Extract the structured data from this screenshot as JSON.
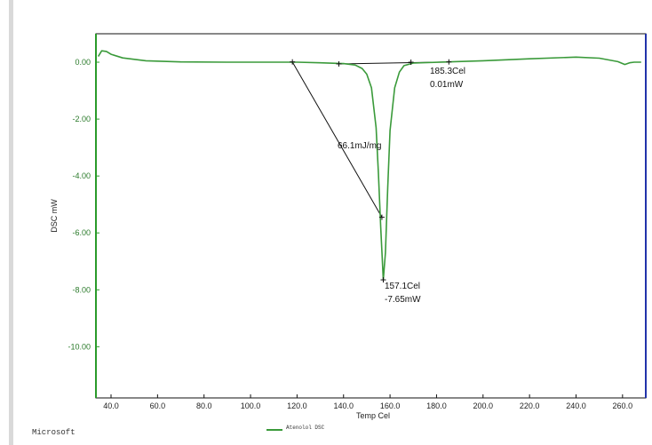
{
  "chart_data": {
    "type": "line",
    "xlabel": "Temp Cel",
    "ylabel": "DSC mW",
    "xlim": [
      33.5,
      270
    ],
    "ylim": [
      -11.8,
      1.0
    ],
    "x_ticks": [
      "40.0",
      "60.0",
      "80.0",
      "100.0",
      "120.0",
      "140.0",
      "160.0",
      "180.0",
      "200.0",
      "220.0",
      "240.0",
      "260.0"
    ],
    "y_ticks": [
      "0.00",
      "-2.00",
      "-4.00",
      "-6.00",
      "-8.00",
      "-10.00"
    ],
    "grid": false,
    "series": [
      {
        "name": "Atenolol DSC",
        "color": "#3a9a3a",
        "x": [
          34.5,
          36,
          38,
          40,
          45,
          55,
          70,
          90,
          110,
          120,
          130,
          140,
          145,
          148,
          150,
          152,
          154,
          155,
          156,
          157.1,
          158,
          159,
          160,
          162,
          164,
          166,
          170,
          185,
          200,
          220,
          240,
          250,
          258,
          261,
          263,
          265,
          268
        ],
        "y": [
          0.2,
          0.4,
          0.38,
          0.28,
          0.15,
          0.05,
          0.01,
          0.0,
          0.0,
          0.0,
          -0.02,
          -0.05,
          -0.1,
          -0.22,
          -0.42,
          -0.9,
          -2.3,
          -3.9,
          -5.8,
          -7.65,
          -6.7,
          -4.4,
          -2.4,
          -0.9,
          -0.35,
          -0.12,
          -0.03,
          0.01,
          0.05,
          0.12,
          0.18,
          0.14,
          0.02,
          -0.08,
          -0.02,
          0.0,
          0.0
        ]
      }
    ],
    "annotations": [
      {
        "text": "185.3Cel",
        "x": 185.3,
        "y": 0.01
      },
      {
        "text": "0.01mW",
        "x": 185.3,
        "y": 0.01
      },
      {
        "text": "66.1mJ/mg"
      },
      {
        "text": "157.1Cel",
        "x": 157.1,
        "y": -7.65
      },
      {
        "text": "-7.65mW",
        "x": 157.1,
        "y": -7.65
      }
    ],
    "construction_lines": [
      {
        "from": [
          118,
          0.01
        ],
        "to": [
          156.5,
          -5.45
        ]
      },
      {
        "from": [
          138,
          -0.06
        ],
        "to": [
          185.3,
          0.01
        ]
      }
    ],
    "markers": [
      [
        118,
        0.01
      ],
      [
        138,
        -0.06
      ],
      [
        169,
        0.0
      ],
      [
        185.3,
        0.01
      ],
      [
        156.5,
        -5.45
      ],
      [
        157.1,
        -7.65
      ]
    ]
  },
  "footer": {
    "left_text": "Microsoft",
    "legend_label": "Atenolol DSC"
  }
}
